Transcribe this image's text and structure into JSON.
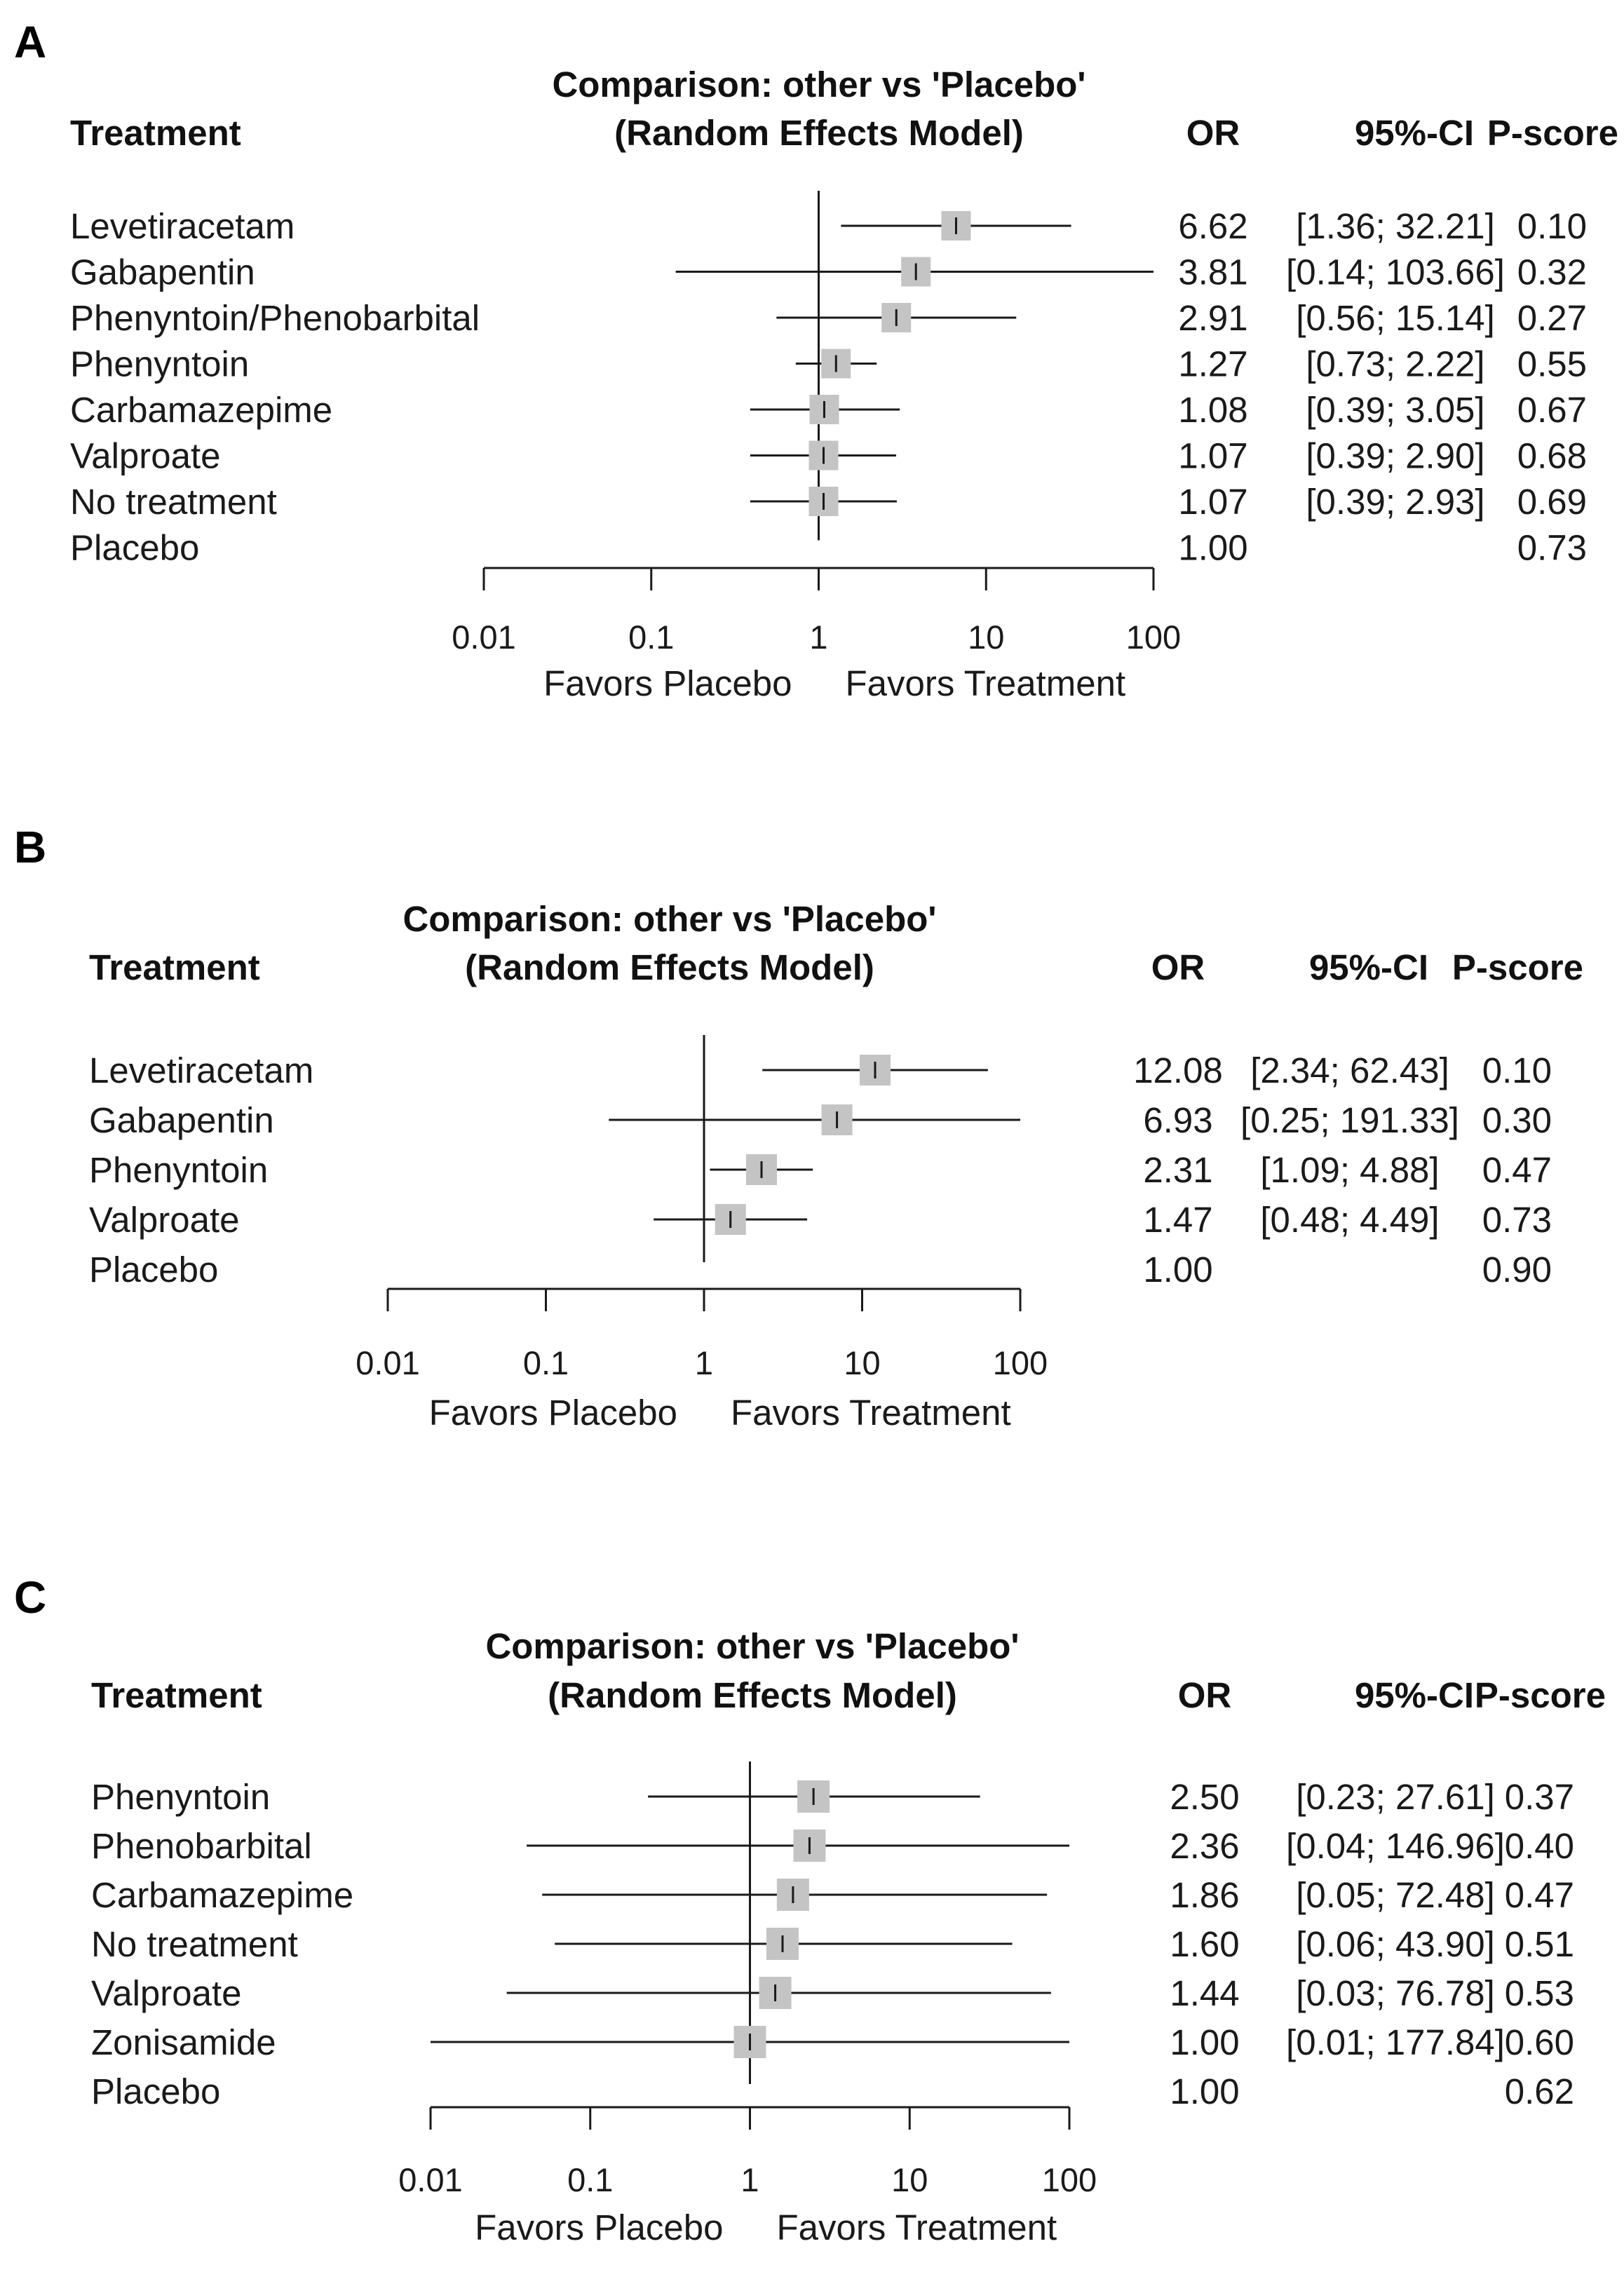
{
  "chart_data": [
    {
      "type": "forest",
      "panel_label": "A",
      "title": "Comparison: other vs 'Placebo'",
      "subtitle": "(Random Effects Model)",
      "columns": {
        "treatment": "Treatment",
        "or": "OR",
        "ci": "95%-CI",
        "pscore": "P-score"
      },
      "x_scale": "log",
      "xlim": [
        0.01,
        100
      ],
      "x_ticks": [
        "0.01",
        "0.1",
        "1",
        "10",
        "100"
      ],
      "reference_line": 1,
      "favors_left": "Favors Placebo",
      "favors_right": "Favors Treatment",
      "rows": [
        {
          "treatment": "Levetiracetam",
          "or": 6.62,
          "lower": 1.36,
          "upper": 32.21,
          "or_text": "6.62",
          "ci_text": "[1.36; 32.21]",
          "pscore": "0.10"
        },
        {
          "treatment": "Gabapentin",
          "or": 3.81,
          "lower": 0.14,
          "upper": 103.66,
          "or_text": "3.81",
          "ci_text": "[0.14; 103.66]",
          "pscore": "0.32"
        },
        {
          "treatment": "Phenyntoin/Phenobarbital",
          "or": 2.91,
          "lower": 0.56,
          "upper": 15.14,
          "or_text": "2.91",
          "ci_text": "[0.56; 15.14]",
          "pscore": "0.27"
        },
        {
          "treatment": "Phenyntoin",
          "or": 1.27,
          "lower": 0.73,
          "upper": 2.22,
          "or_text": "1.27",
          "ci_text": "[0.73; 2.22]",
          "pscore": "0.55"
        },
        {
          "treatment": "Carbamazepime",
          "or": 1.08,
          "lower": 0.39,
          "upper": 3.05,
          "or_text": "1.08",
          "ci_text": "[0.39; 3.05]",
          "pscore": "0.67"
        },
        {
          "treatment": "Valproate",
          "or": 1.07,
          "lower": 0.39,
          "upper": 2.9,
          "or_text": "1.07",
          "ci_text": "[0.39; 2.90]",
          "pscore": "0.68"
        },
        {
          "treatment": "No treatment",
          "or": 1.07,
          "lower": 0.39,
          "upper": 2.93,
          "or_text": "1.07",
          "ci_text": "[0.39; 2.93]",
          "pscore": "0.69"
        },
        {
          "treatment": "Placebo",
          "or": 1.0,
          "lower": null,
          "upper": null,
          "or_text": "1.00",
          "ci_text": "",
          "pscore": "0.73"
        }
      ]
    },
    {
      "type": "forest",
      "panel_label": "B",
      "title": "Comparison: other vs 'Placebo'",
      "subtitle": "(Random Effects Model)",
      "columns": {
        "treatment": "Treatment",
        "or": "OR",
        "ci": "95%-CI",
        "pscore": "P-score"
      },
      "x_scale": "log",
      "xlim": [
        0.01,
        100
      ],
      "x_ticks": [
        "0.01",
        "0.1",
        "1",
        "10",
        "100"
      ],
      "reference_line": 1,
      "favors_left": "Favors Placebo",
      "favors_right": "Favors Treatment",
      "rows": [
        {
          "treatment": "Levetiracetam",
          "or": 12.08,
          "lower": 2.34,
          "upper": 62.43,
          "or_text": "12.08",
          "ci_text": "[2.34; 62.43]",
          "pscore": "0.10"
        },
        {
          "treatment": "Gabapentin",
          "or": 6.93,
          "lower": 0.25,
          "upper": 191.33,
          "or_text": "6.93",
          "ci_text": "[0.25; 191.33]",
          "pscore": "0.30"
        },
        {
          "treatment": "Phenyntoin",
          "or": 2.31,
          "lower": 1.09,
          "upper": 4.88,
          "or_text": "2.31",
          "ci_text": "[1.09; 4.88]",
          "pscore": "0.47"
        },
        {
          "treatment": "Valproate",
          "or": 1.47,
          "lower": 0.48,
          "upper": 4.49,
          "or_text": "1.47",
          "ci_text": "[0.48; 4.49]",
          "pscore": "0.73"
        },
        {
          "treatment": "Placebo",
          "or": 1.0,
          "lower": null,
          "upper": null,
          "or_text": "1.00",
          "ci_text": "",
          "pscore": "0.90"
        }
      ]
    },
    {
      "type": "forest",
      "panel_label": "C",
      "title": "Comparison: other vs 'Placebo'",
      "subtitle": "(Random Effects Model)",
      "columns": {
        "treatment": "Treatment",
        "or": "OR",
        "ci": "95%-CI",
        "pscore": "P-score"
      },
      "x_scale": "log",
      "xlim": [
        0.01,
        100
      ],
      "x_ticks": [
        "0.01",
        "0.1",
        "1",
        "10",
        "100"
      ],
      "reference_line": 1,
      "favors_left": "Favors Placebo",
      "favors_right": "Favors Treatment",
      "rows": [
        {
          "treatment": "Phenyntoin",
          "or": 2.5,
          "lower": 0.23,
          "upper": 27.61,
          "or_text": "2.50",
          "ci_text": "[0.23; 27.61]",
          "pscore": "0.37"
        },
        {
          "treatment": "Phenobarbital",
          "or": 2.36,
          "lower": 0.04,
          "upper": 146.96,
          "or_text": "2.36",
          "ci_text": "[0.04; 146.96]",
          "pscore": "0.40"
        },
        {
          "treatment": "Carbamazepime",
          "or": 1.86,
          "lower": 0.05,
          "upper": 72.48,
          "or_text": "1.86",
          "ci_text": "[0.05; 72.48]",
          "pscore": "0.47"
        },
        {
          "treatment": "No treatment",
          "or": 1.6,
          "lower": 0.06,
          "upper": 43.9,
          "or_text": "1.60",
          "ci_text": "[0.06; 43.90]",
          "pscore": "0.51"
        },
        {
          "treatment": "Valproate",
          "or": 1.44,
          "lower": 0.03,
          "upper": 76.78,
          "or_text": "1.44",
          "ci_text": "[0.03; 76.78]",
          "pscore": "0.53"
        },
        {
          "treatment": "Zonisamide",
          "or": 1.0,
          "lower": 0.01,
          "upper": 177.84,
          "or_text": "1.00",
          "ci_text": "[0.01; 177.84]",
          "pscore": "0.60"
        },
        {
          "treatment": "Placebo",
          "or": 1.0,
          "lower": null,
          "upper": null,
          "or_text": "1.00",
          "ci_text": "",
          "pscore": "0.62"
        }
      ]
    }
  ],
  "colors": {
    "box": "#c4c4c4",
    "line": "#1a1a1a",
    "text": "#1a1a1a"
  }
}
